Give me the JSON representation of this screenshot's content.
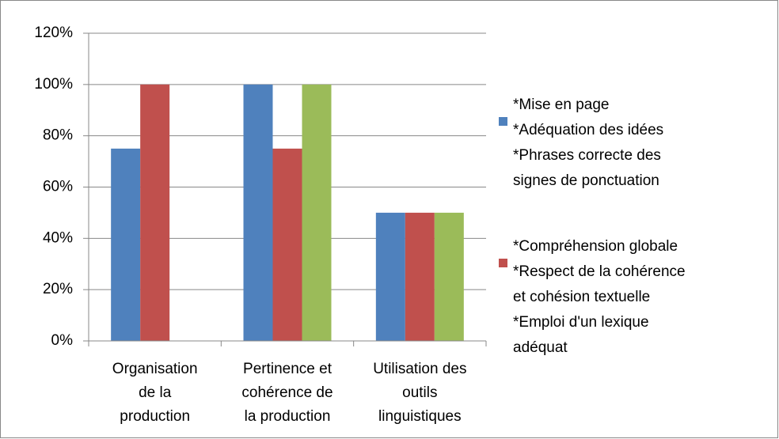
{
  "chart_data": {
    "type": "bar",
    "categories": [
      [
        "Organisation",
        "de la",
        "production"
      ],
      [
        "Pertinence et",
        "cohérence de",
        "la production"
      ],
      [
        "Utilisation des",
        "outils",
        "linguistiques"
      ]
    ],
    "series": [
      {
        "name": [
          "*Mise en page",
          "*Adéquation des idées",
          "*Phrases correcte des",
          "signes de ponctuation"
        ],
        "color": "#4f81bd",
        "values": [
          75,
          100,
          50
        ]
      },
      {
        "name": [
          "*Compréhension globale",
          "*Respect de la cohérence",
          "et cohésion textuelle",
          "*Emploi d'un lexique",
          "adéquat"
        ],
        "color": "#c0504d",
        "values": [
          100,
          75,
          50
        ]
      },
      {
        "color": "#9bbb59",
        "values": [
          null,
          100,
          50
        ]
      }
    ],
    "ylim": [
      0,
      120
    ],
    "yticks": [
      {
        "value": 0,
        "label": "0%"
      },
      {
        "value": 20,
        "label": "20%"
      },
      {
        "value": 40,
        "label": "40%"
      },
      {
        "value": 60,
        "label": "60%"
      },
      {
        "value": 80,
        "label": "80%"
      },
      {
        "value": 100,
        "label": "100%"
      },
      {
        "value": 120,
        "label": "120%"
      }
    ],
    "grid": true
  }
}
